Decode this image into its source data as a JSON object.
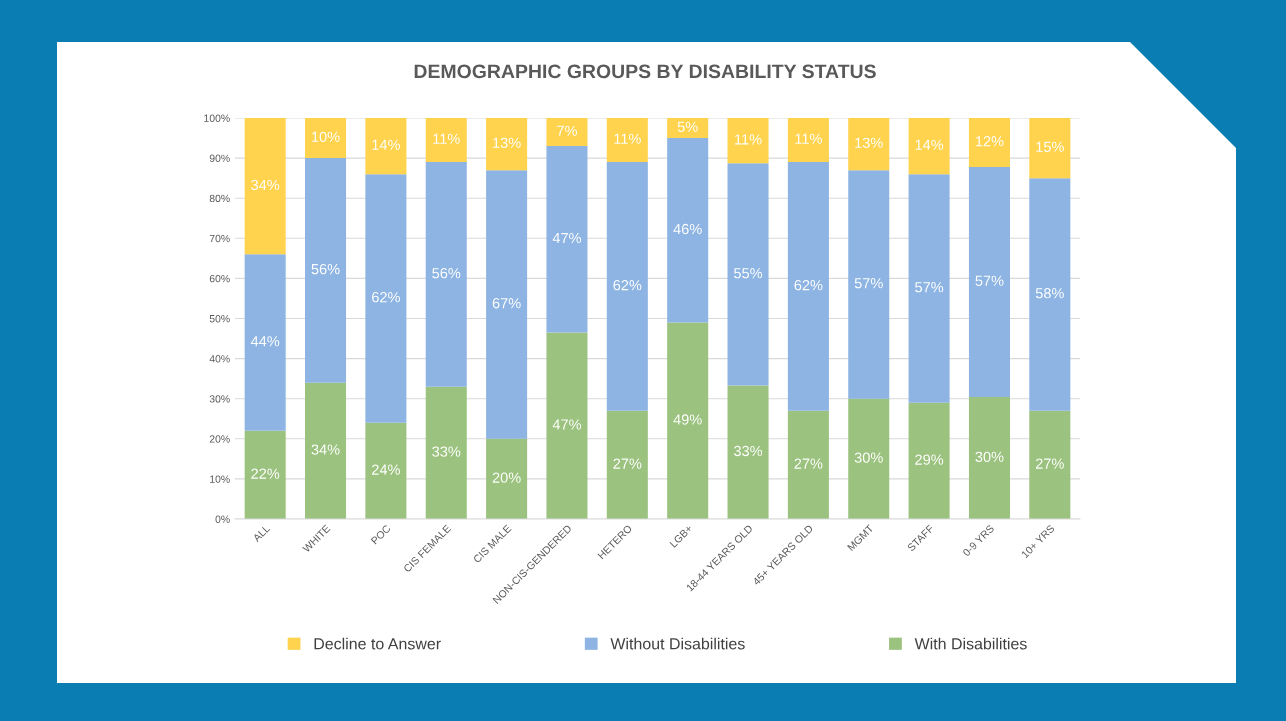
{
  "chart_data": {
    "type": "bar",
    "stacked": true,
    "title": "DEMOGRAPHIC GROUPS BY DISABILITY STATUS",
    "categories": [
      "ALL",
      "WHITE",
      "POC",
      "CIS FEMALE",
      "CIS MALE",
      "NON-CIS-GENDERED",
      "HETERO",
      "LGB+",
      "18-44 YEARS OLD",
      "45+ YEARS OLD",
      "MGMT",
      "STAFF",
      "0-9 YRS",
      "10+ YRS"
    ],
    "series": [
      {
        "name": "With Disabilities",
        "color": "#9bc27e",
        "values": [
          22,
          34,
          24,
          33,
          20,
          46.5,
          27,
          49,
          33.3,
          27,
          30,
          29,
          30.4,
          27
        ],
        "value_labels": [
          "22%",
          "34%",
          "24%",
          "33%",
          "20%",
          "47%",
          "27%",
          "49%",
          "33%",
          "27%",
          "30%",
          "29%",
          "30%",
          "27%"
        ]
      },
      {
        "name": "Without Disabilities",
        "color": "#8db4e2",
        "values": [
          44,
          56,
          62,
          56,
          67,
          46.5,
          62,
          46,
          55.4,
          62,
          57,
          57,
          57.4,
          58
        ],
        "value_labels": [
          "44%",
          "56%",
          "62%",
          "56%",
          "67%",
          "47%",
          "62%",
          "46%",
          "55%",
          "62%",
          "57%",
          "57%",
          "57%",
          "58%"
        ]
      },
      {
        "name": "Decline to Answer",
        "color": "#ffd34d",
        "values": [
          34,
          10,
          14,
          11,
          13,
          7,
          11,
          5,
          11.3,
          11,
          13,
          14,
          12.2,
          15
        ],
        "value_labels": [
          "34%",
          "10%",
          "14%",
          "11%",
          "13%",
          "7%",
          "11%",
          "5%",
          "11%",
          "11%",
          "13%",
          "14%",
          "12%",
          "15%"
        ]
      }
    ],
    "ylim": [
      0,
      100
    ],
    "yticks": [
      {
        "value": 0,
        "label": "0%"
      },
      {
        "value": 10,
        "label": "10%"
      },
      {
        "value": 20,
        "label": "20%"
      },
      {
        "value": 30,
        "label": "30%"
      },
      {
        "value": 40,
        "label": "40%"
      },
      {
        "value": 50,
        "label": "50%"
      },
      {
        "value": 60,
        "label": "60%"
      },
      {
        "value": 70,
        "label": "70%"
      },
      {
        "value": 80,
        "label": "80%"
      },
      {
        "value": 90,
        "label": "90%"
      },
      {
        "value": 100,
        "label": "100%"
      }
    ],
    "grid": "y",
    "legend": "bottom"
  }
}
